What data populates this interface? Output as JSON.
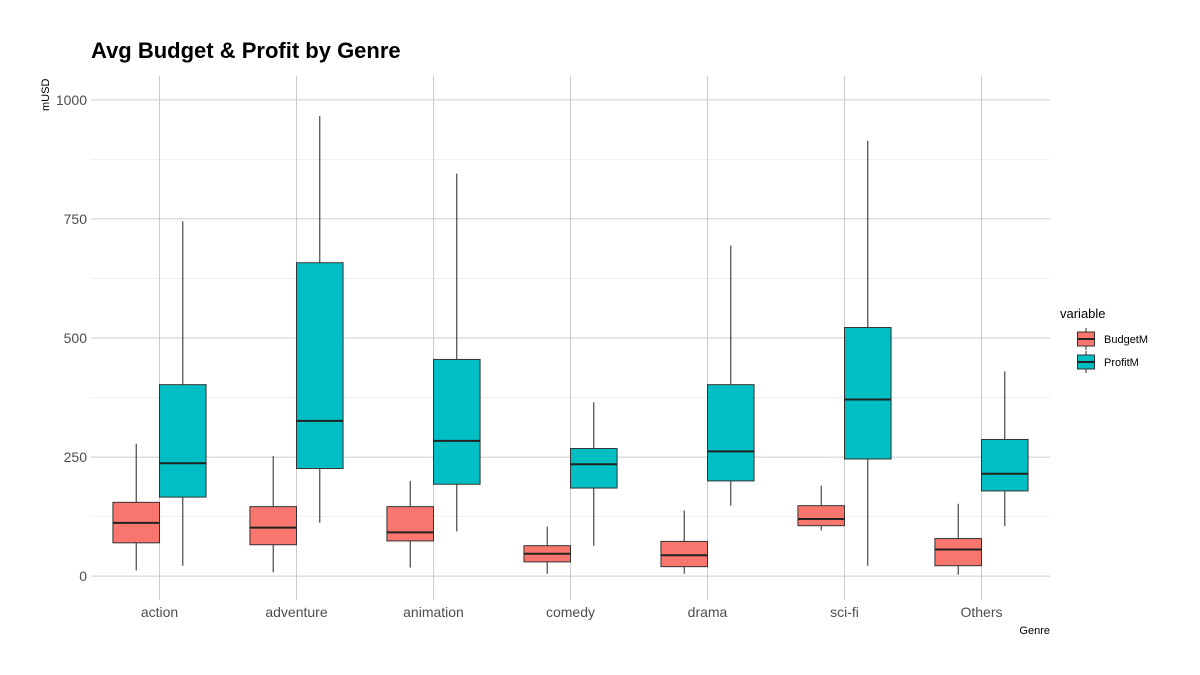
{
  "chart_data": {
    "type": "boxplot",
    "title": "Avg Budget & Profit by Genre",
    "xlabel": "Genre",
    "ylabel": "mUSD",
    "ylim": [
      -50,
      1050
    ],
    "yticks": [
      0,
      250,
      500,
      750,
      1000
    ],
    "grid": true,
    "legend": {
      "title": "variable",
      "position": "right"
    },
    "categories": [
      "action",
      "adventure",
      "animation",
      "comedy",
      "drama",
      "sci-fi",
      "Others"
    ],
    "series": [
      {
        "name": "BudgetM",
        "color": "#F8766D",
        "boxes": [
          {
            "min": 12,
            "q1": 70,
            "median": 112,
            "q3": 155,
            "max": 278
          },
          {
            "min": 8,
            "q1": 66,
            "median": 102,
            "q3": 146,
            "max": 252
          },
          {
            "min": 18,
            "q1": 74,
            "median": 92,
            "q3": 146,
            "max": 200
          },
          {
            "min": 5,
            "q1": 30,
            "median": 47,
            "q3": 64,
            "max": 104
          },
          {
            "min": 5,
            "q1": 20,
            "median": 44,
            "q3": 73,
            "max": 138
          },
          {
            "min": 96,
            "q1": 106,
            "median": 120,
            "q3": 148,
            "max": 190
          },
          {
            "min": 3,
            "q1": 22,
            "median": 56,
            "q3": 79,
            "max": 152
          }
        ]
      },
      {
        "name": "ProfitM",
        "color": "#00BFC4",
        "boxes": [
          {
            "min": 22,
            "q1": 166,
            "median": 237,
            "q3": 402,
            "max": 745
          },
          {
            "min": 112,
            "q1": 226,
            "median": 326,
            "q3": 658,
            "max": 966
          },
          {
            "min": 94,
            "q1": 193,
            "median": 284,
            "q3": 455,
            "max": 845
          },
          {
            "min": 64,
            "q1": 185,
            "median": 235,
            "q3": 268,
            "max": 365
          },
          {
            "min": 148,
            "q1": 200,
            "median": 262,
            "q3": 402,
            "max": 694
          },
          {
            "min": 22,
            "q1": 246,
            "median": 371,
            "q3": 522,
            "max": 914
          },
          {
            "min": 105,
            "q1": 179,
            "median": 215,
            "q3": 287,
            "max": 430
          }
        ]
      }
    ]
  }
}
